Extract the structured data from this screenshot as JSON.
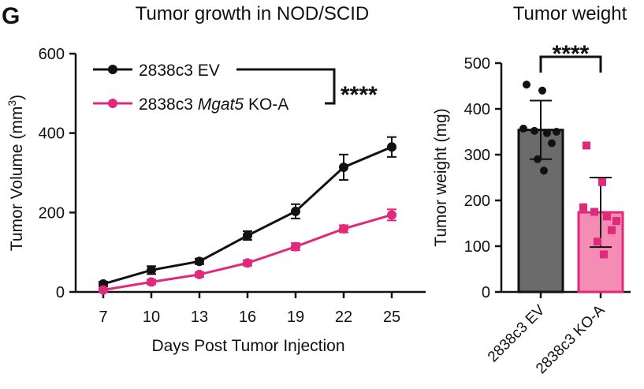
{
  "panel_label": "G",
  "colors": {
    "ev": "#111111",
    "ko": "#e0297a",
    "ev_bar": "#6b6b6b",
    "ko_bar": "#f58cb4"
  },
  "chart_data": [
    {
      "type": "line",
      "title": "Tumor growth in NOD/SCID",
      "xlabel": "Days Post Tumor Injection",
      "ylabel_main": "Tumor Volume (mm",
      "ylabel_sup": "3",
      "ylabel_close": ")",
      "x": [
        7,
        10,
        13,
        16,
        19,
        22,
        25
      ],
      "ylim": [
        0,
        600
      ],
      "yticks": [
        0,
        200,
        400,
        600
      ],
      "series": [
        {
          "name": "2838c3 EV",
          "values": [
            20,
            55,
            77,
            142,
            203,
            314,
            365
          ],
          "err": [
            6,
            10,
            7,
            11,
            18,
            32,
            25
          ]
        },
        {
          "name_prefix": "2838c3 ",
          "name_italic": "Mgat5",
          "name_suffix": " KO-A",
          "values": [
            5,
            25,
            44,
            73,
            114,
            159,
            194
          ],
          "err": [
            4,
            6,
            6,
            7,
            9,
            9,
            14
          ]
        }
      ],
      "significance": "****",
      "legend": "top-left"
    },
    {
      "type": "bar",
      "title": "Tumor weight",
      "ylabel": "Tumor weight (mg)",
      "categories": [
        "2838c3 EV",
        "2838c3 KO-A"
      ],
      "values": [
        354,
        174
      ],
      "err": [
        64,
        76
      ],
      "points": [
        [
          453,
          440,
          357,
          352,
          347,
          350,
          325,
          290,
          265
        ],
        [
          320,
          240,
          185,
          175,
          165,
          155,
          135,
          110,
          82
        ]
      ],
      "ylim": [
        0,
        500
      ],
      "yticks": [
        0,
        100,
        200,
        300,
        400,
        500
      ],
      "significance": "****"
    }
  ]
}
